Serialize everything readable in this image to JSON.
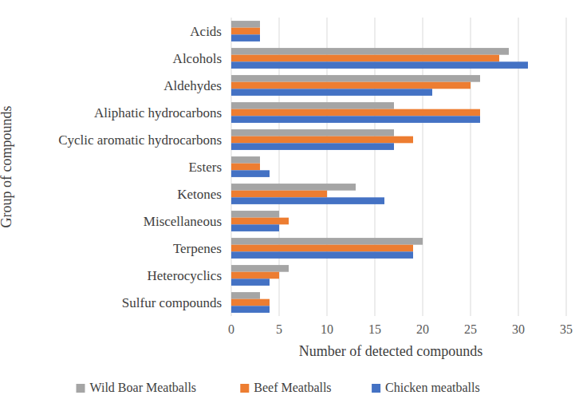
{
  "chart_data": {
    "type": "bar",
    "orientation": "horizontal",
    "x_label": "Number of detected compounds",
    "y_label": "Group of compounds",
    "categories": [
      "Acids",
      "Alcohols",
      "Aldehydes",
      "Aliphatic hydrocarbons",
      "Cyclic aromatic hydrocarbons",
      "Esters",
      "Ketones",
      "Miscellaneous",
      "Terpenes",
      "Heterocyclics",
      "Sulfur compounds"
    ],
    "series": [
      {
        "name": "Wild Boar Meatballs",
        "color": "#a5a5a5",
        "values": [
          3,
          29,
          26,
          17,
          17,
          3,
          13,
          5,
          20,
          6,
          3
        ]
      },
      {
        "name": "Beef Meatballs",
        "color": "#ed7d31",
        "values": [
          3,
          28,
          25,
          26,
          19,
          3,
          10,
          6,
          19,
          5,
          4
        ]
      },
      {
        "name": "Chicken meatballs",
        "color": "#4472c4",
        "values": [
          3,
          31,
          21,
          26,
          17,
          4,
          16,
          5,
          19,
          4,
          4
        ]
      }
    ],
    "xlim": [
      0,
      35
    ],
    "xticks": [
      0,
      5,
      10,
      15,
      20,
      25,
      30,
      35
    ],
    "grid": true,
    "legend": "bottom"
  }
}
